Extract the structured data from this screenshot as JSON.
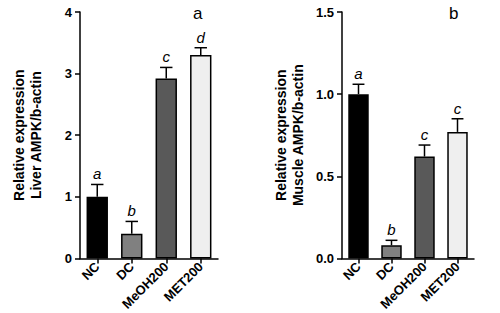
{
  "chart_data": [
    {
      "type": "bar",
      "panel_label": "a",
      "y_label": "Relative expression\nLiver AMPK/b-actin",
      "categories": [
        "NC",
        "DC",
        "MeOH200",
        "MET200"
      ],
      "values": [
        1.0,
        0.4,
        2.92,
        3.3
      ],
      "errors": [
        0.2,
        0.2,
        0.18,
        0.12
      ],
      "annotations": [
        "a",
        "b",
        "c",
        "d"
      ],
      "colors": [
        "#000000",
        "#808080",
        "#595959",
        "#efefef"
      ],
      "ylim": [
        0,
        4
      ],
      "yticks": [
        0,
        1,
        2,
        3,
        4
      ]
    },
    {
      "type": "bar",
      "panel_label": "b",
      "y_label": "Relative expression\nMuscle AMPK/b-actin",
      "categories": [
        "NC",
        "DC",
        "MeOH200",
        "MET200"
      ],
      "values": [
        1.0,
        0.08,
        0.62,
        0.77
      ],
      "errors": [
        0.06,
        0.03,
        0.07,
        0.08
      ],
      "annotations": [
        "a",
        "b",
        "c",
        "c"
      ],
      "colors": [
        "#000000",
        "#808080",
        "#595959",
        "#efefef"
      ],
      "ylim": [
        0,
        1.5
      ],
      "yticks": [
        {
          "value": 0,
          "label": "0.0"
        },
        {
          "value": 0.5,
          "label": "0.5"
        },
        {
          "value": 1.0,
          "label": "1.0"
        },
        {
          "value": 1.5,
          "label": "1.5"
        }
      ]
    }
  ]
}
